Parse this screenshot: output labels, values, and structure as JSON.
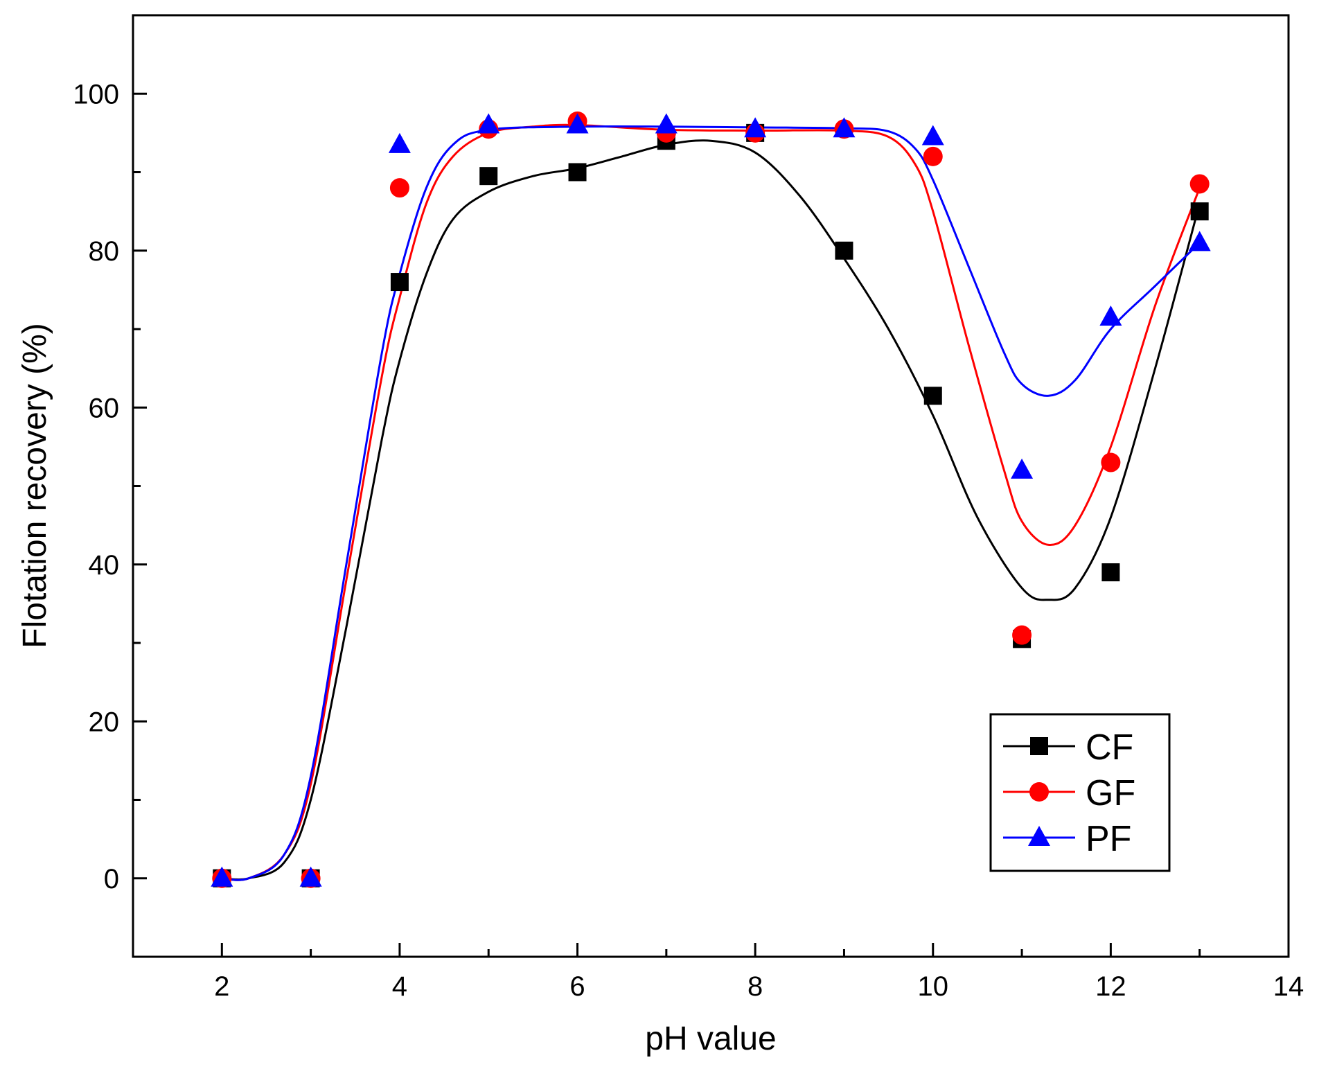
{
  "chart_data": {
    "type": "line",
    "title": "",
    "xlabel": "pH value",
    "ylabel": "Flotation recovery (%)",
    "xlim": [
      1,
      14
    ],
    "ylim": [
      -10,
      110
    ],
    "x_ticks": [
      2,
      4,
      6,
      8,
      10,
      12,
      14
    ],
    "y_ticks": [
      0,
      20,
      40,
      60,
      80,
      100
    ],
    "x": [
      2,
      3,
      4,
      5,
      6,
      7,
      8,
      9,
      10,
      11,
      12,
      13
    ],
    "legend_position": "bottom-right",
    "series": [
      {
        "name": "CF",
        "color": "#000000",
        "marker": "square",
        "values": [
          0,
          0,
          76,
          89.5,
          90,
          94,
          95,
          80,
          61.5,
          30.5,
          39,
          85
        ],
        "fit": [
          [
            2,
            0
          ],
          [
            2.3,
            0
          ],
          [
            2.7,
            2
          ],
          [
            3,
            10
          ],
          [
            3.4,
            32
          ],
          [
            3.8,
            56
          ],
          [
            4,
            66
          ],
          [
            4.3,
            77
          ],
          [
            4.6,
            84
          ],
          [
            5,
            87.5
          ],
          [
            5.5,
            89.5
          ],
          [
            6,
            90.5
          ],
          [
            6.5,
            92
          ],
          [
            7,
            93.5
          ],
          [
            7.5,
            94
          ],
          [
            8,
            92.5
          ],
          [
            8.5,
            87
          ],
          [
            9,
            79
          ],
          [
            9.5,
            70
          ],
          [
            10,
            59
          ],
          [
            10.5,
            46
          ],
          [
            11,
            37
          ],
          [
            11.3,
            35.5
          ],
          [
            11.6,
            37
          ],
          [
            12,
            46
          ],
          [
            12.5,
            65
          ],
          [
            13,
            86
          ]
        ]
      },
      {
        "name": "GF",
        "color": "#ff0000",
        "marker": "circle",
        "values": [
          0,
          0,
          88,
          95.5,
          96.5,
          95,
          95,
          95.5,
          92,
          31,
          53,
          88.5
        ],
        "fit": [
          [
            2,
            0
          ],
          [
            2.3,
            0
          ],
          [
            2.7,
            3
          ],
          [
            3,
            12
          ],
          [
            3.4,
            38
          ],
          [
            3.8,
            64
          ],
          [
            4,
            74
          ],
          [
            4.3,
            86
          ],
          [
            4.6,
            92
          ],
          [
            5,
            95
          ],
          [
            5.5,
            95.8
          ],
          [
            6,
            96
          ],
          [
            7,
            95.4
          ],
          [
            8,
            95.3
          ],
          [
            9,
            95.3
          ],
          [
            9.5,
            94.5
          ],
          [
            9.8,
            91
          ],
          [
            10,
            85
          ],
          [
            10.4,
            68
          ],
          [
            10.8,
            52
          ],
          [
            11,
            45.5
          ],
          [
            11.3,
            42.5
          ],
          [
            11.6,
            45
          ],
          [
            12,
            55
          ],
          [
            12.5,
            73
          ],
          [
            13,
            88
          ]
        ]
      },
      {
        "name": "PF",
        "color": "#0000ff",
        "marker": "triangle",
        "values": [
          0,
          0,
          93.5,
          96,
          96,
          96,
          95.5,
          95.5,
          94.5,
          52,
          71.5,
          81
        ],
        "fit": [
          [
            2,
            0
          ],
          [
            2.3,
            0
          ],
          [
            2.7,
            3
          ],
          [
            3,
            13
          ],
          [
            3.4,
            40
          ],
          [
            3.8,
            67
          ],
          [
            4,
            77
          ],
          [
            4.3,
            88
          ],
          [
            4.6,
            93.5
          ],
          [
            5,
            95.4
          ],
          [
            6,
            95.8
          ],
          [
            7,
            95.8
          ],
          [
            8,
            95.7
          ],
          [
            9,
            95.6
          ],
          [
            9.5,
            95.2
          ],
          [
            9.8,
            93
          ],
          [
            10,
            89
          ],
          [
            10.4,
            78
          ],
          [
            10.8,
            67
          ],
          [
            11,
            63
          ],
          [
            11.3,
            61.5
          ],
          [
            11.6,
            63.5
          ],
          [
            12,
            70
          ],
          [
            12.5,
            75.5
          ],
          [
            13,
            81
          ]
        ]
      }
    ]
  }
}
